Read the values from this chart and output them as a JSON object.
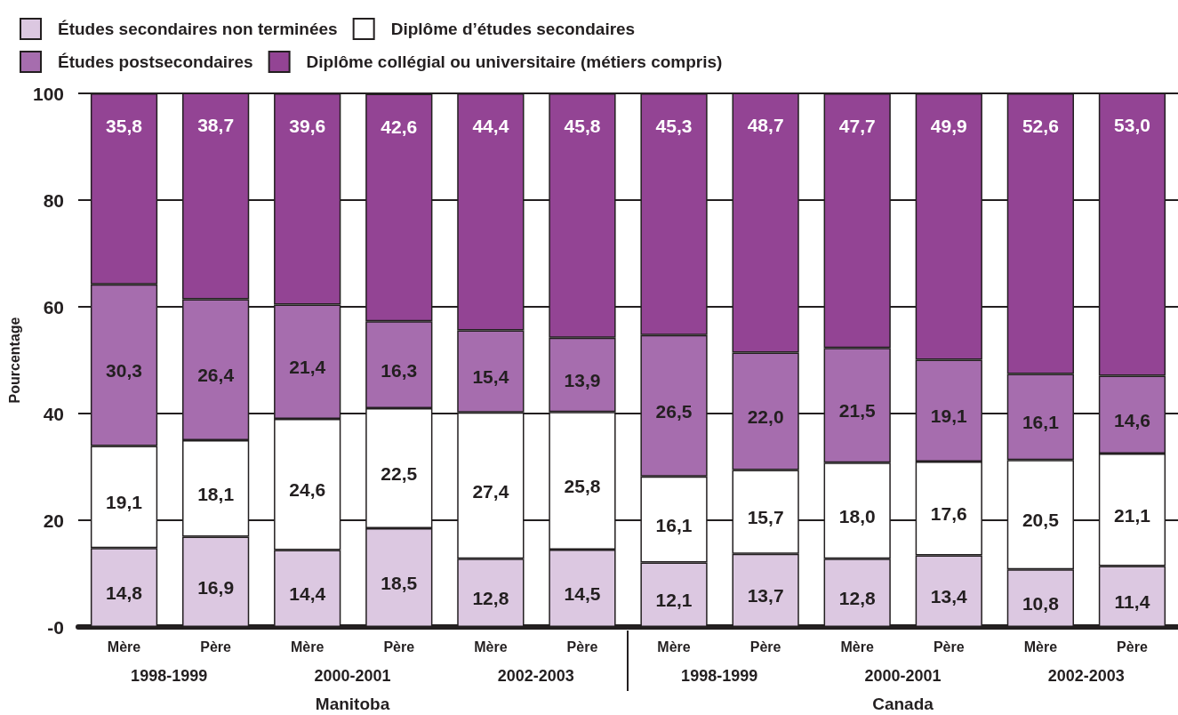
{
  "chart_data": {
    "type": "bar",
    "stacked": true,
    "ylabel": "Pourcentage",
    "categories": [
      "Mère",
      "Père",
      "Mère",
      "Père",
      "Mère",
      "Père",
      "Mère",
      "Père",
      "Mère",
      "Père",
      "Mère",
      "Père"
    ],
    "series": [
      {
        "name": "Études secondaires non terminées",
        "color": "#dcc8e1",
        "values": [
          14.8,
          16.9,
          14.4,
          18.5,
          12.8,
          14.5,
          12.1,
          13.7,
          12.8,
          13.4,
          10.8,
          11.4
        ],
        "value_labels": [
          "14,8",
          "16,9",
          "14,4",
          "18,5",
          "12,8",
          "14,5",
          "12,1",
          "13,7",
          "12,8",
          "13,4",
          "10,8",
          "11,4"
        ]
      },
      {
        "name": "Diplôme d’études secondaires",
        "color": "#ffffff",
        "values": [
          19.1,
          18.1,
          24.6,
          22.5,
          27.4,
          25.8,
          16.1,
          15.7,
          18.0,
          17.6,
          20.5,
          21.1
        ],
        "value_labels": [
          "19,1",
          "18,1",
          "24,6",
          "22,5",
          "27,4",
          "25,8",
          "16,1",
          "15,7",
          "18,0",
          "17,6",
          "20,5",
          "21,1"
        ]
      },
      {
        "name": "Études postsecondaires",
        "color": "#a66dae",
        "values": [
          30.3,
          26.4,
          21.4,
          16.3,
          15.4,
          13.9,
          26.5,
          22.0,
          21.5,
          19.1,
          16.1,
          14.6
        ],
        "value_labels": [
          "30,3",
          "26,4",
          "21,4",
          "16,3",
          "15,4",
          "13,9",
          "26,5",
          "22,0",
          "21,5",
          "19,1",
          "16,1",
          "14,6"
        ]
      },
      {
        "name": "Diplôme collégial ou universitaire (métiers compris)",
        "color": "#934494",
        "values": [
          35.8,
          38.7,
          39.6,
          42.6,
          44.4,
          45.8,
          45.3,
          48.7,
          47.7,
          49.9,
          52.6,
          53.0
        ],
        "value_labels": [
          "35,8",
          "38,7",
          "39,6",
          "42,6",
          "44,4",
          "45,8",
          "45,3",
          "48,7",
          "47,7",
          "49,9",
          "52,6",
          "53,0"
        ]
      }
    ],
    "ylim": [
      0,
      100
    ],
    "yticks": [
      {
        "value": 0,
        "label": "-0"
      },
      20,
      40,
      60,
      80,
      100
    ],
    "grid": "y",
    "legend": "top left",
    "annotations": [
      "1998-1999",
      "2000-2001",
      "2002-2003",
      "1998-1999",
      "2000-2001",
      "2002-2003",
      "Manitoba",
      "Canada"
    ]
  }
}
